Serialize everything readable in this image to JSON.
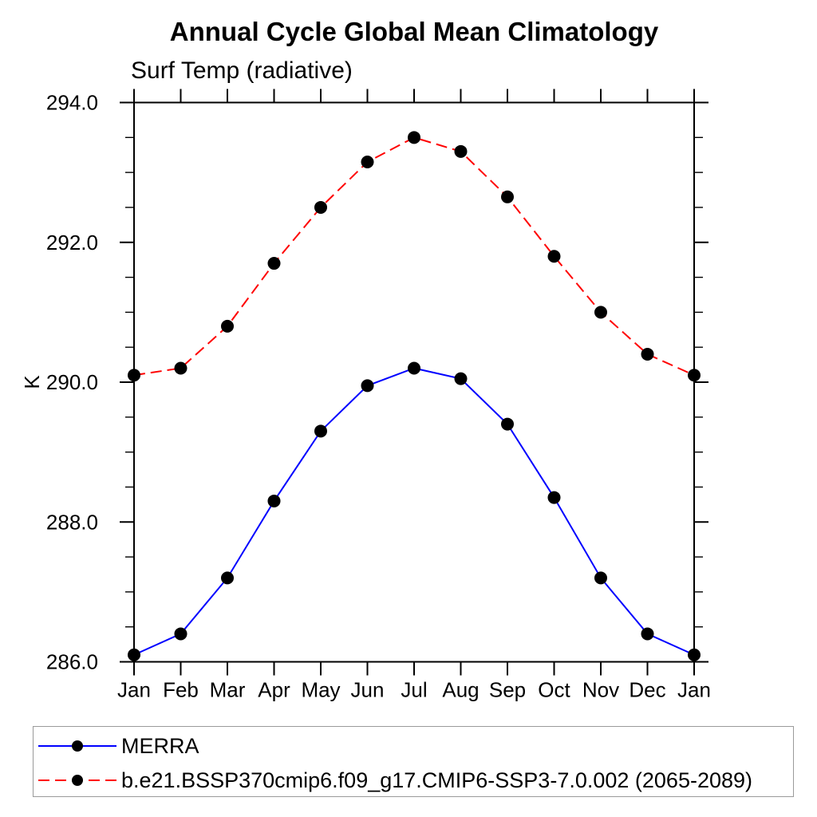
{
  "chart_data": {
    "type": "line",
    "title": "Annual Cycle Global Mean Climatology",
    "subtitle": "Surf Temp (radiative)",
    "ylabel": "K",
    "xlabel": "",
    "x_tick_labels": [
      "Jan",
      "Feb",
      "Mar",
      "Apr",
      "May",
      "Jun",
      "Jul",
      "Aug",
      "Sep",
      "Oct",
      "Nov",
      "Dec",
      "Jan"
    ],
    "y_tick_labels": [
      "286.0",
      "288.0",
      "290.0",
      "292.0",
      "294.0"
    ],
    "ylim": [
      286.0,
      294.0
    ],
    "y_major_step": 2.0,
    "y_minor_step": 0.5,
    "grid": false,
    "legend_position": "bottom-box",
    "marker": "filled-circle",
    "marker_color": "#000000",
    "axis_color": "#000000",
    "series": [
      {
        "name": "MERRA",
        "color": "#0000ff",
        "line_style": "solid",
        "values": [
          286.1,
          286.4,
          287.2,
          288.3,
          289.3,
          289.95,
          290.2,
          290.05,
          289.4,
          288.35,
          287.2,
          286.4,
          286.1
        ]
      },
      {
        "name": "b.e21.BSSP370cmip6.f09_g17.CMIP6-SSP3-7.0.002 (2065-2089)",
        "color": "#ff0000",
        "line_style": "dashed",
        "values": [
          290.1,
          290.2,
          290.8,
          291.7,
          292.5,
          293.15,
          293.5,
          293.3,
          292.65,
          291.8,
          291.0,
          290.4,
          290.1
        ]
      }
    ]
  }
}
